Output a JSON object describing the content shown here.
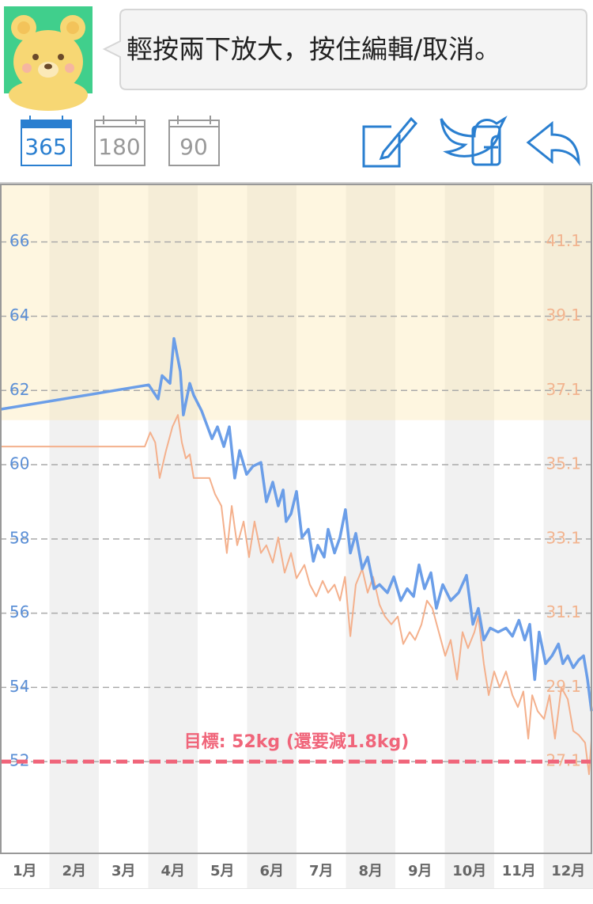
{
  "header": {
    "hint": "輕按兩下放大，按住編輯/取消。"
  },
  "toolbar": {
    "ranges": [
      "365",
      "180",
      "90"
    ]
  },
  "chart_data": {
    "type": "line",
    "xlim": [
      0,
      12
    ],
    "xticks": [
      {
        "value": 0.5,
        "label": "1月"
      },
      {
        "value": 1.5,
        "label": "2月"
      },
      {
        "value": 2.5,
        "label": "3月"
      },
      {
        "value": 3.5,
        "label": "4月"
      },
      {
        "value": 4.5,
        "label": "5月"
      },
      {
        "value": 5.5,
        "label": "6月"
      },
      {
        "value": 6.5,
        "label": "7月"
      },
      {
        "value": 7.5,
        "label": "8月"
      },
      {
        "value": 8.5,
        "label": "9月"
      },
      {
        "value": 9.5,
        "label": "10月"
      },
      {
        "value": 10.5,
        "label": "11月"
      },
      {
        "value": 11.5,
        "label": "12月"
      }
    ],
    "ylim": [
      49.53,
      67.55
    ],
    "yticks": [
      52,
      54,
      56,
      58,
      60,
      62,
      64,
      66
    ],
    "y2lim": [
      24.63,
      42.65
    ],
    "y2ticks": [
      27.1,
      29.1,
      31.1,
      33.1,
      35.1,
      37.1,
      39.1,
      41.1
    ],
    "grid": true,
    "shade_above": 61.2,
    "target": {
      "value": 52,
      "label": "目標: 52kg (還要減1.8kg)",
      "color": "#f0657a"
    },
    "series": [
      {
        "color": "#6b9ee8",
        "x": [
          0,
          3.01,
          3.2,
          3.28,
          3.44,
          3.52,
          3.65,
          3.71,
          3.84,
          3.92,
          4.08,
          4.29,
          4.4,
          4.53,
          4.64,
          4.75,
          4.85,
          4.99,
          5.12,
          5.28,
          5.39,
          5.52,
          5.63,
          5.73,
          5.79,
          5.89,
          6,
          6.11,
          6.24,
          6.34,
          6.43,
          6.56,
          6.64,
          6.77,
          6.88,
          6.99,
          7.09,
          7.2,
          7.33,
          7.44,
          7.57,
          7.68,
          7.84,
          7.97,
          8.11,
          8.24,
          8.37,
          8.48,
          8.59,
          8.72,
          8.83,
          8.96,
          9.12,
          9.28,
          9.44,
          9.57,
          9.68,
          9.79,
          9.92,
          10.08,
          10.24,
          10.37,
          10.5,
          10.62,
          10.72,
          10.82,
          10.91,
          11.04,
          11.17,
          11.3,
          11.39,
          11.49,
          11.6,
          11.71,
          11.81,
          11.89,
          11.97
        ],
        "values": [
          61.49,
          62.15,
          61.77,
          62.4,
          62.19,
          63.4,
          62.51,
          61.34,
          62.19,
          61.87,
          61.45,
          60.7,
          61.02,
          60.49,
          61.02,
          59.64,
          60.38,
          59.74,
          59.96,
          60.06,
          59,
          59.53,
          58.89,
          59.32,
          58.47,
          58.68,
          59.28,
          58.04,
          58.26,
          57.4,
          57.83,
          57.51,
          58.26,
          57.62,
          58.04,
          58.79,
          57.62,
          58.15,
          57.19,
          57.51,
          56.66,
          56.77,
          56.55,
          56.98,
          56.34,
          56.66,
          56.45,
          57.3,
          56.66,
          57.09,
          56.13,
          56.77,
          56.34,
          56.55,
          57.02,
          55.7,
          56.13,
          55.28,
          55.6,
          55.49,
          55.6,
          55.38,
          55.81,
          55.28,
          55.7,
          54.21,
          55.49,
          54.64,
          54.85,
          55.17,
          54.64,
          54.85,
          54.53,
          54.74,
          54.85,
          54.21,
          53.36
        ]
      },
      {
        "color": "#f4b08c",
        "axis": "y2",
        "x": [
          0,
          2.93,
          3.04,
          3.14,
          3.23,
          3.36,
          3.49,
          3.6,
          3.68,
          3.76,
          3.84,
          3.92,
          4.24,
          4.35,
          4.48,
          4.59,
          4.69,
          4.8,
          4.93,
          5.04,
          5.15,
          5.28,
          5.39,
          5.52,
          5.63,
          5.76,
          5.89,
          6,
          6.16,
          6.27,
          6.4,
          6.53,
          6.64,
          6.77,
          6.88,
          6.98,
          7.09,
          7.2,
          7.33,
          7.44,
          7.55,
          7.68,
          7.79,
          7.92,
          8.05,
          8.16,
          8.29,
          8.4,
          8.53,
          8.64,
          8.75,
          8.88,
          9.01,
          9.12,
          9.25,
          9.36,
          9.47,
          9.6,
          9.68,
          9.79,
          9.89,
          10,
          10.11,
          10.24,
          10.37,
          10.48,
          10.59,
          10.69,
          10.77,
          10.88,
          11.01,
          11.12,
          11.23,
          11.36,
          11.49,
          11.6,
          11.71,
          11.84,
          11.92,
          11.97
        ],
        "values": [
          35.59,
          35.59,
          35.97,
          35.7,
          34.74,
          35.48,
          36.12,
          36.44,
          35.7,
          35.27,
          35.38,
          34.74,
          34.74,
          34.31,
          33.99,
          32.72,
          33.99,
          32.93,
          33.57,
          32.61,
          33.57,
          32.72,
          32.93,
          32.46,
          33.14,
          32.19,
          32.72,
          32.04,
          32.4,
          31.87,
          31.55,
          31.97,
          31.65,
          31.87,
          31.44,
          32.08,
          30.48,
          31.87,
          32.29,
          31.65,
          32.08,
          31.33,
          31.01,
          30.8,
          31.01,
          30.27,
          30.59,
          30.38,
          30.8,
          31.44,
          31.23,
          30.59,
          29.95,
          30.38,
          29.31,
          30.59,
          30.16,
          30.59,
          31.01,
          29.74,
          28.89,
          29.53,
          29.1,
          29.53,
          28.89,
          28.57,
          28.99,
          27.72,
          28.89,
          28.46,
          28.25,
          28.89,
          27.72,
          29.1,
          28.78,
          27.93,
          27.82,
          27.61,
          26.76,
          27.72
        ]
      }
    ]
  }
}
